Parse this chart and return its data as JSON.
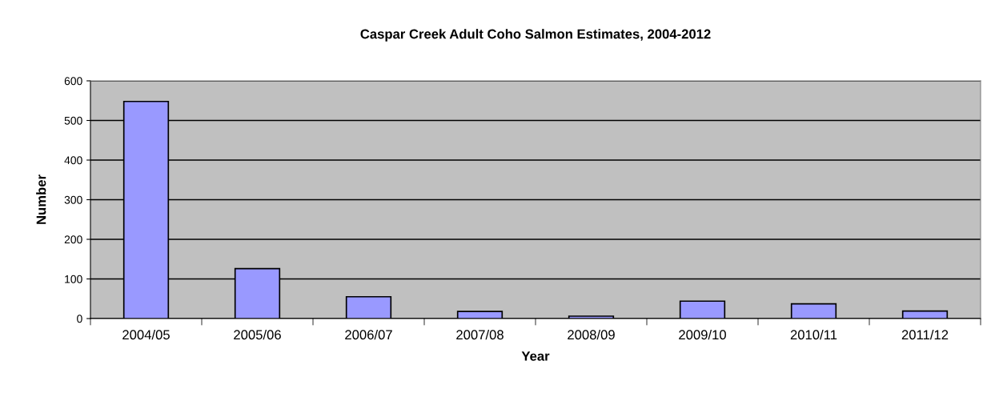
{
  "chart_data": {
    "type": "bar",
    "title": "Caspar Creek Adult Coho Salmon Estimates, 2004-2012",
    "xlabel": "Year",
    "ylabel": "Number",
    "categories": [
      "2004/05",
      "2005/06",
      "2006/07",
      "2007/08",
      "2008/09",
      "2009/10",
      "2010/11",
      "2011/12"
    ],
    "values": [
      548,
      126,
      55,
      18,
      6,
      44,
      37,
      19
    ],
    "color": "#9999ff",
    "ylim": [
      0,
      600
    ],
    "yticks": [
      0,
      100,
      200,
      300,
      400,
      500,
      600
    ],
    "grid": "y"
  }
}
